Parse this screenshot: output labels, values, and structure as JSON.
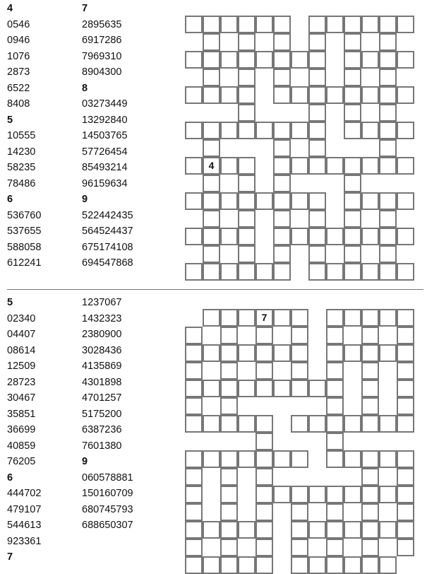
{
  "puzzles": [
    {
      "word_columns": [
        [
          {
            "text": "4",
            "bold": true
          },
          {
            "text": "0546"
          },
          {
            "text": "0946"
          },
          {
            "text": "1076"
          },
          {
            "text": "2873"
          },
          {
            "text": "6522"
          },
          {
            "text": "8408"
          },
          {
            "text": "5",
            "bold": true
          },
          {
            "text": "10555"
          },
          {
            "text": "14230"
          },
          {
            "text": "58235"
          },
          {
            "text": "78486"
          },
          {
            "text": "6",
            "bold": true
          },
          {
            "text": "536760"
          },
          {
            "text": "537655"
          },
          {
            "text": "588058"
          },
          {
            "text": "612241"
          }
        ],
        [
          {
            "text": "7",
            "bold": true
          },
          {
            "text": "2895635"
          },
          {
            "text": "6917286"
          },
          {
            "text": "7969310"
          },
          {
            "text": "8904300"
          },
          {
            "text": "8",
            "bold": true
          },
          {
            "text": "03273449"
          },
          {
            "text": "13292840"
          },
          {
            "text": "14503765"
          },
          {
            "text": "57726454"
          },
          {
            "text": "85493214"
          },
          {
            "text": "96159634"
          },
          {
            "text": "9",
            "bold": true
          },
          {
            "text": "522442435"
          },
          {
            "text": "564524437"
          },
          {
            "text": "675174108"
          },
          {
            "text": "694547868"
          }
        ]
      ],
      "grid": [
        "XXXXXX.XXXXXX",
        ".X.X.X.X.X.X.",
        "XXXXXXXX.XXXX",
        ".X.X.X.X.X.X.",
        "XXXX.XXXXXXXX",
        "...X...X.X.X.",
        "XXXXXXXX.XXXX",
        ".X...X.X...X.",
        "XXXX.XXXXXXXX",
        ".X.X.X...X...",
        "XXXXXXXX.XXXX",
        ".X.X.X.X.X.X.",
        "XXXX.XXXXXXXX",
        ".X.X.X.X.X.X.",
        "XXXXXX.XXXXXX"
      ],
      "given": [
        {
          "row": 8,
          "col": 1,
          "value": "4"
        }
      ]
    },
    {
      "word_columns": [
        [
          {
            "text": "5",
            "bold": true
          },
          {
            "text": "02340"
          },
          {
            "text": "04407"
          },
          {
            "text": "08614"
          },
          {
            "text": "12509"
          },
          {
            "text": "28723"
          },
          {
            "text": "30467"
          },
          {
            "text": "35851"
          },
          {
            "text": "36699"
          },
          {
            "text": "40859"
          },
          {
            "text": "76205"
          },
          {
            "text": "6",
            "bold": true
          },
          {
            "text": "444702"
          },
          {
            "text": "479107"
          },
          {
            "text": "544613"
          },
          {
            "text": "923361"
          },
          {
            "text": "7",
            "bold": true
          }
        ],
        [
          {
            "text": "1237067"
          },
          {
            "text": "1432323"
          },
          {
            "text": "2380900"
          },
          {
            "text": "3028436"
          },
          {
            "text": "4135869"
          },
          {
            "text": "4301898"
          },
          {
            "text": "4701257"
          },
          {
            "text": "5175200"
          },
          {
            "text": "6387236"
          },
          {
            "text": "7601380"
          },
          {
            "text": "9",
            "bold": true
          },
          {
            "text": "060578881"
          },
          {
            "text": "150160709"
          },
          {
            "text": "680745793"
          },
          {
            "text": "688650307"
          }
        ]
      ],
      "grid": [
        ".XXXXXX.XXXXX",
        "X.X.X.X.X.X.X",
        "XXXXXXX.XXXXX",
        "X.X.X.X.X.X.X",
        "XXXXXXXXX.X.X",
        "X.X.....X.X.X",
        "XXXXX.XXXXXXX",
        "....X...X....",
        "XXXXXXX.XXXXX",
        "X.X.X.....X.X",
        "X.X.XXXXXXXXX",
        "X.X.X.X.X.X.X",
        "XXXXX.XXXXXXX",
        "X.X.X.X.X.X.X",
        "XXXXX.XXXXXX."
      ],
      "given": [
        {
          "row": 0,
          "col": 4,
          "value": "7"
        }
      ]
    }
  ]
}
